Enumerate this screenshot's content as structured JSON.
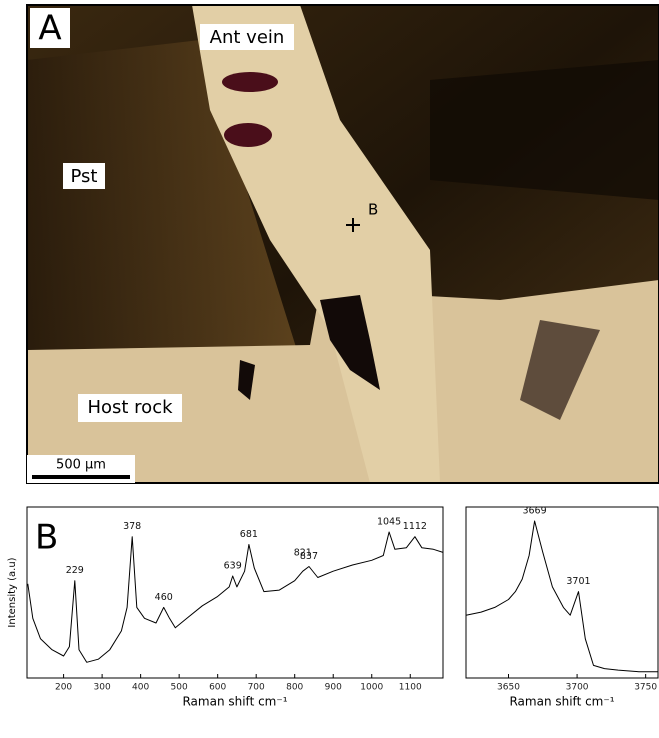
{
  "panel_a": {
    "label": "A",
    "vein_label": "Ant vein",
    "pst_label": "Pst",
    "host_label": "Host rock",
    "point_label": "B",
    "scale_bar": "500 µm"
  },
  "chart_data": [
    {
      "type": "line",
      "panel_label": "B",
      "ylabel": "Intensity (a.u)",
      "xlabel": "Raman shift cm⁻¹",
      "xlim": [
        105,
        1185
      ],
      "ylim": [
        0,
        100
      ],
      "xticks": [
        200,
        300,
        400,
        500,
        600,
        700,
        800,
        900,
        1000,
        1100
      ],
      "color": "#000000",
      "x": [
        107,
        120,
        140,
        170,
        200,
        215,
        229,
        240,
        260,
        290,
        320,
        350,
        365,
        378,
        390,
        410,
        440,
        460,
        475,
        490,
        520,
        560,
        600,
        630,
        639,
        650,
        670,
        681,
        695,
        720,
        760,
        800,
        821,
        837,
        860,
        900,
        950,
        1000,
        1030,
        1045,
        1060,
        1090,
        1112,
        1130,
        1160,
        1185
      ],
      "values": [
        60,
        38,
        25,
        18,
        14,
        20,
        62,
        18,
        10,
        12,
        18,
        30,
        45,
        90,
        45,
        38,
        35,
        45,
        38,
        32,
        38,
        46,
        52,
        58,
        65,
        58,
        68,
        85,
        70,
        55,
        56,
        62,
        68,
        71,
        64,
        68,
        72,
        75,
        78,
        93,
        82,
        83,
        90,
        83,
        82,
        80
      ],
      "peaks": [
        229,
        378,
        460,
        639,
        681,
        821,
        837,
        1045,
        1112
      ]
    },
    {
      "type": "line",
      "xlabel": "Raman shift cm⁻¹",
      "xlim": [
        3619,
        3759
      ],
      "ylim": [
        0,
        100
      ],
      "xticks": [
        3650,
        3700,
        3750
      ],
      "color": "#000000",
      "x": [
        3619,
        3630,
        3640,
        3650,
        3655,
        3660,
        3665,
        3669,
        3675,
        3682,
        3690,
        3695,
        3701,
        3706,
        3712,
        3720,
        3730,
        3745,
        3759
      ],
      "values": [
        40,
        42,
        45,
        50,
        55,
        63,
        78,
        100,
        80,
        58,
        45,
        40,
        55,
        25,
        8,
        6,
        5,
        4,
        4
      ],
      "peaks": [
        3669,
        3701
      ]
    }
  ]
}
